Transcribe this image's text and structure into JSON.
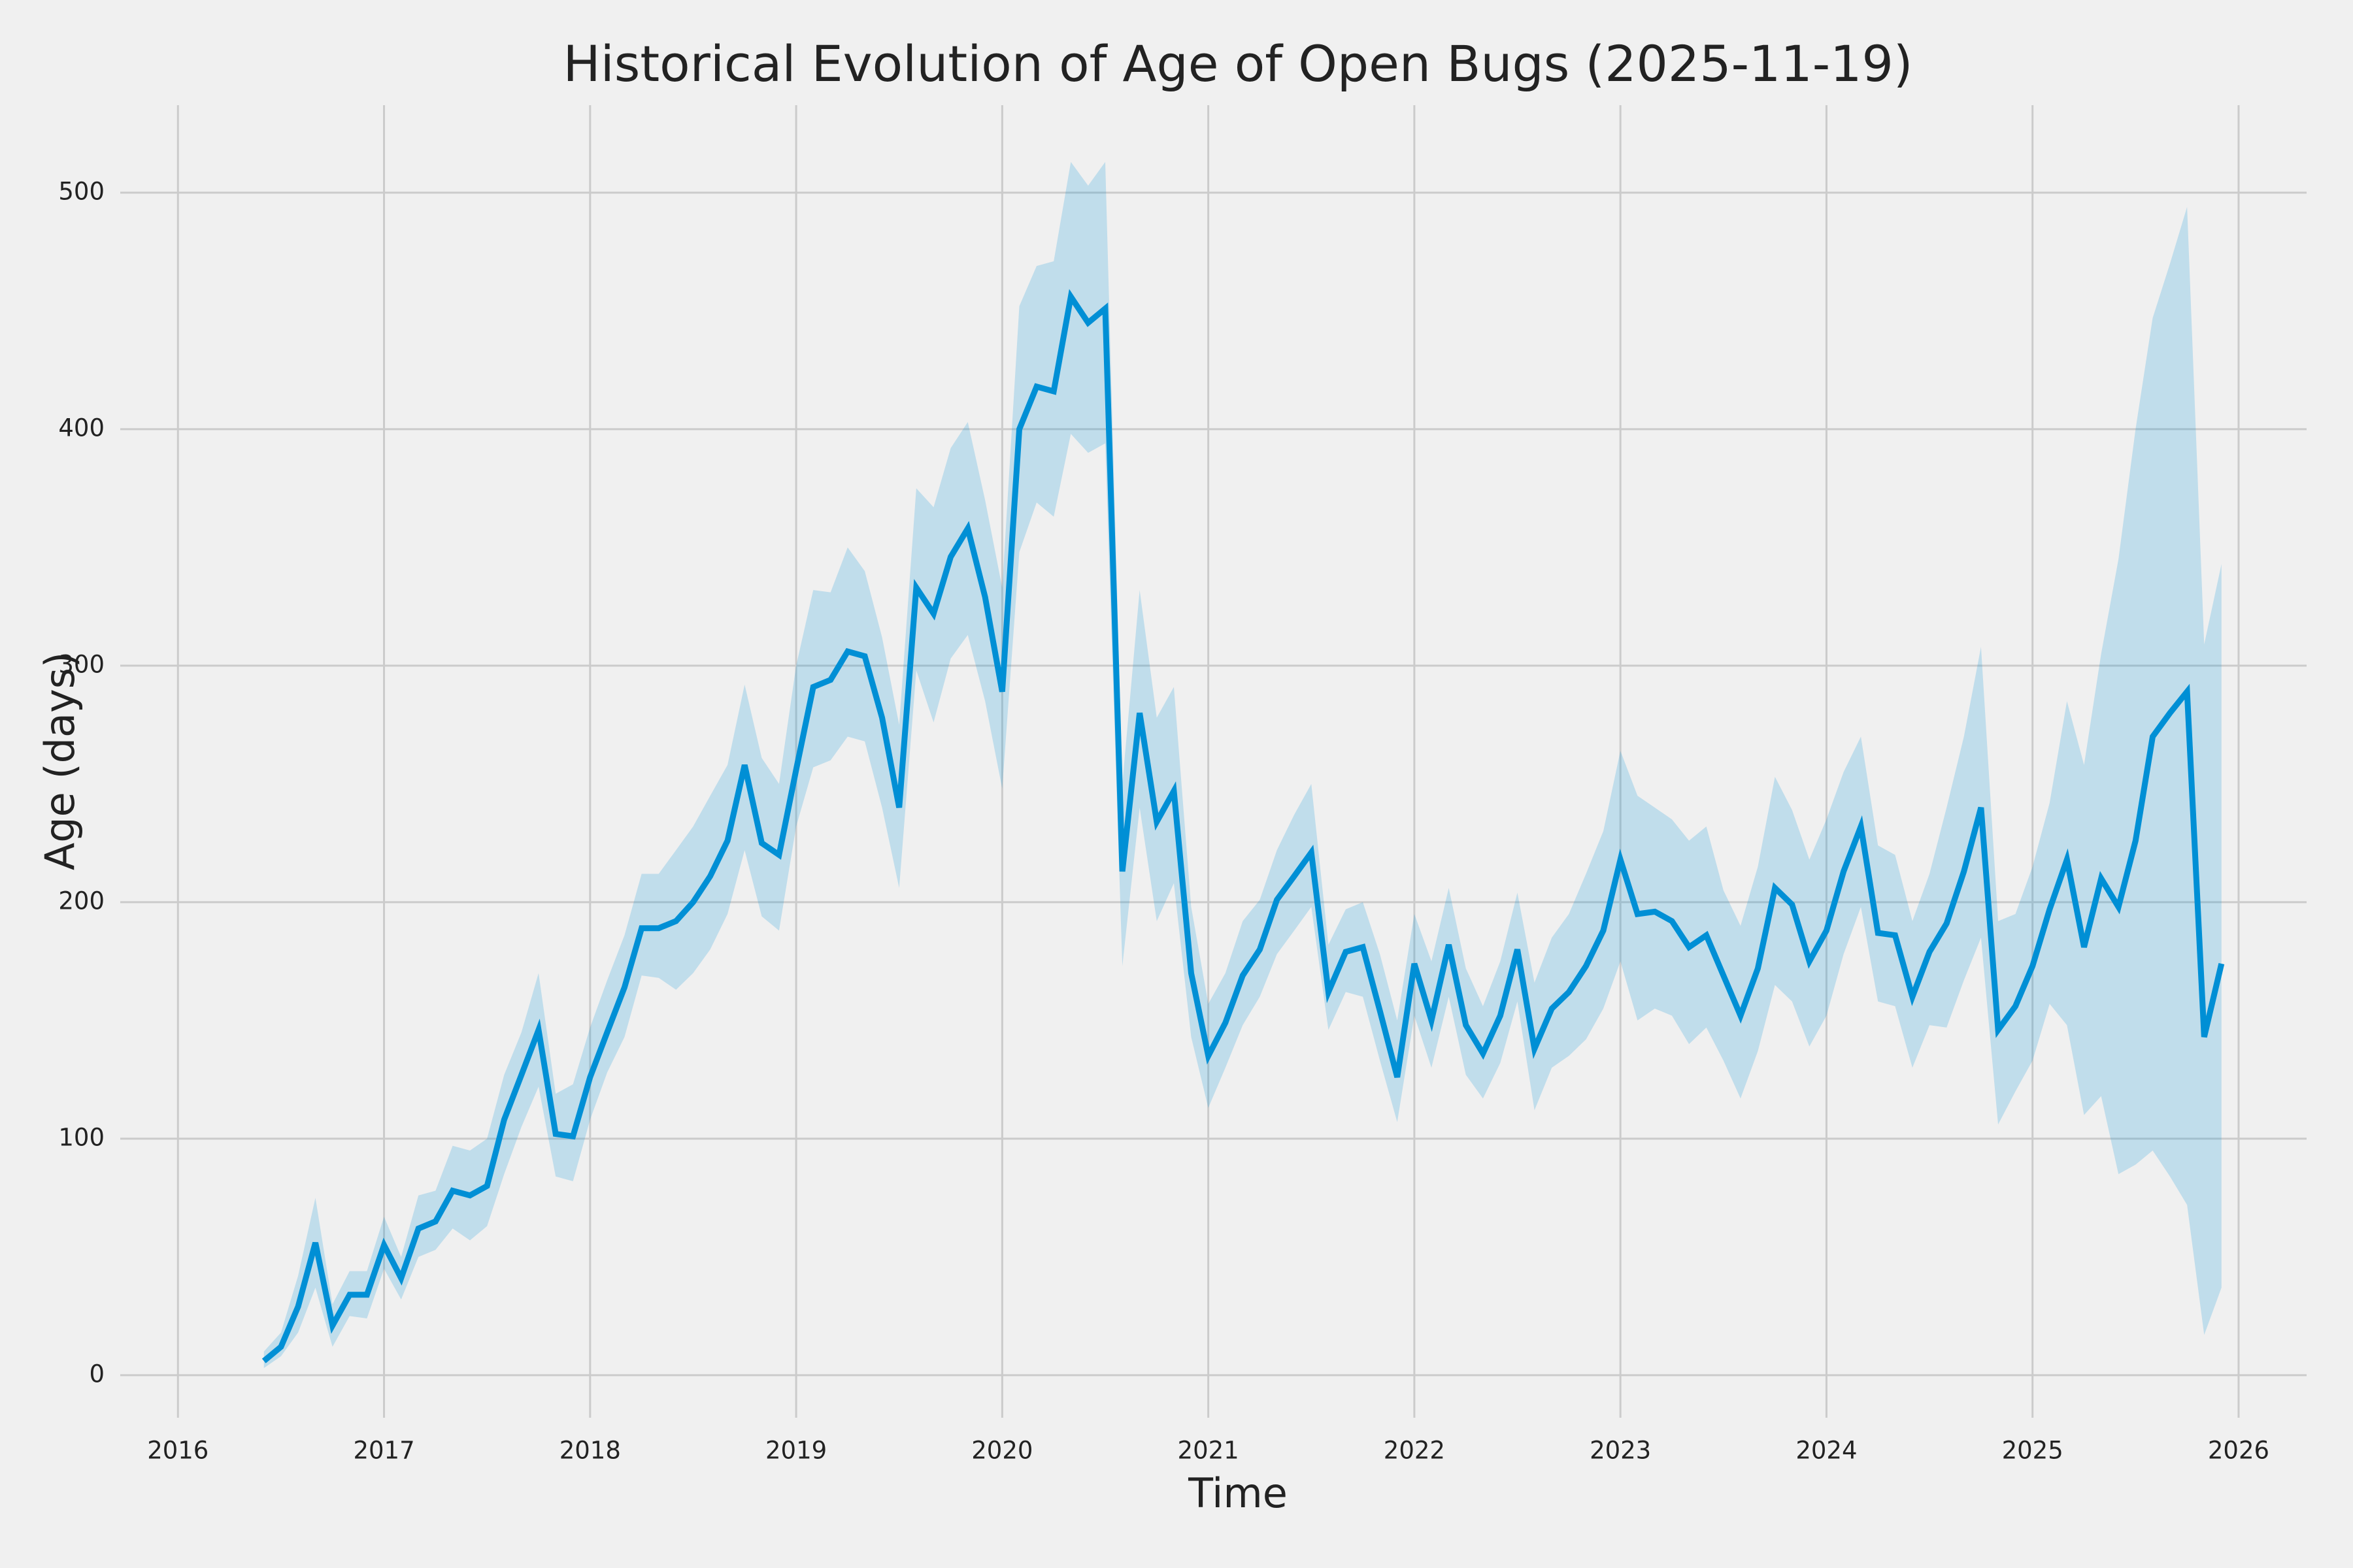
{
  "chart_data": {
    "type": "line",
    "title": "Historical Evolution of Age of Open Bugs (2025-11-19)",
    "xlabel": "Time",
    "ylabel": "Age (days)",
    "color": "#008fd5",
    "band_color": "#008fd5",
    "band_opacity": 0.2,
    "grid": true,
    "xlim": [
      2015.72,
      2026.33
    ],
    "ylim": [
      -18,
      537
    ],
    "xticks": [
      2016,
      2017,
      2018,
      2019,
      2020,
      2021,
      2022,
      2023,
      2024,
      2025,
      2026
    ],
    "yticks": [
      0,
      100,
      200,
      300,
      400,
      500
    ],
    "x": [
      2016.417,
      2016.5,
      2016.583,
      2016.667,
      2016.75,
      2016.833,
      2016.917,
      2017.0,
      2017.083,
      2017.167,
      2017.25,
      2017.333,
      2017.417,
      2017.5,
      2017.583,
      2017.667,
      2017.75,
      2017.833,
      2017.917,
      2018.0,
      2018.083,
      2018.167,
      2018.25,
      2018.333,
      2018.417,
      2018.5,
      2018.583,
      2018.667,
      2018.75,
      2018.833,
      2018.917,
      2019.0,
      2019.083,
      2019.167,
      2019.25,
      2019.333,
      2019.417,
      2019.5,
      2019.583,
      2019.667,
      2019.75,
      2019.833,
      2019.917,
      2020.0,
      2020.083,
      2020.167,
      2020.25,
      2020.333,
      2020.417,
      2020.5,
      2020.583,
      2020.667,
      2020.75,
      2020.833,
      2020.917,
      2021.0,
      2021.083,
      2021.167,
      2021.25,
      2021.333,
      2021.417,
      2021.5,
      2021.583,
      2021.667,
      2021.75,
      2021.833,
      2021.917,
      2022.0,
      2022.083,
      2022.167,
      2022.25,
      2022.333,
      2022.417,
      2022.5,
      2022.583,
      2022.667,
      2022.75,
      2022.833,
      2022.917,
      2023.0,
      2023.083,
      2023.167,
      2023.25,
      2023.333,
      2023.417,
      2023.5,
      2023.583,
      2023.667,
      2023.75,
      2023.833,
      2023.917,
      2024.0,
      2024.083,
      2024.167,
      2024.25,
      2024.333,
      2024.417,
      2024.5,
      2024.583,
      2024.667,
      2024.75,
      2024.833,
      2024.917,
      2025.0,
      2025.083,
      2025.167,
      2025.25,
      2025.333,
      2025.417,
      2025.5,
      2025.583,
      2025.667,
      2025.75,
      2025.833,
      2025.917
    ],
    "values": [
      6,
      12,
      29,
      56,
      21,
      34,
      34,
      55,
      41,
      62,
      65,
      78,
      76,
      80,
      108,
      127,
      146,
      102,
      101,
      126,
      145,
      164,
      189,
      189,
      192,
      200,
      211,
      226,
      258,
      225,
      220,
      256,
      291,
      294,
      306,
      304,
      278,
      240,
      333,
      322,
      346,
      358,
      329,
      289,
      400,
      418,
      416,
      456,
      445,
      451,
      213,
      280,
      234,
      247,
      170,
      135,
      149,
      169,
      180,
      201,
      211,
      221,
      162,
      179,
      181,
      154,
      126,
      174,
      150,
      182,
      148,
      136,
      152,
      180,
      138,
      155,
      162,
      173,
      188,
      218,
      195,
      196,
      192,
      181,
      186,
      169,
      152,
      172,
      206,
      199,
      175,
      188,
      213,
      232,
      187,
      186,
      160,
      179,
      191,
      213,
      240,
      146,
      156,
      173,
      197,
      218,
      181,
      210,
      198,
      226,
      270,
      280,
      289,
      143,
      174
    ],
    "lower": [
      3,
      8,
      18,
      37,
      12,
      25,
      24,
      45,
      32,
      50,
      53,
      62,
      57,
      63,
      85,
      105,
      122,
      84,
      82,
      108,
      128,
      143,
      169,
      168,
      163,
      170,
      180,
      195,
      222,
      194,
      188,
      232,
      257,
      260,
      270,
      268,
      240,
      206,
      298,
      276,
      303,
      313,
      285,
      248,
      348,
      369,
      363,
      398,
      390,
      394,
      173,
      240,
      192,
      208,
      143,
      113,
      130,
      148,
      160,
      178,
      188,
      198,
      146,
      162,
      160,
      133,
      107,
      152,
      130,
      160,
      127,
      117,
      132,
      158,
      112,
      130,
      135,
      142,
      155,
      175,
      150,
      155,
      152,
      140,
      147,
      133,
      117,
      137,
      165,
      158,
      139,
      152,
      178,
      198,
      158,
      156,
      130,
      148,
      147,
      167,
      185,
      106,
      120,
      133,
      157,
      148,
      110,
      118,
      85,
      89,
      95,
      84,
      72,
      17,
      37
    ],
    "upper": [
      10,
      18,
      42,
      75,
      30,
      44,
      44,
      67,
      50,
      76,
      78,
      97,
      95,
      100,
      127,
      145,
      170,
      119,
      123,
      147,
      167,
      186,
      212,
      212,
      222,
      232,
      245,
      258,
      292,
      261,
      250,
      300,
      332,
      331,
      350,
      340,
      312,
      275,
      375,
      367,
      392,
      403,
      370,
      333,
      452,
      469,
      471,
      513,
      503,
      513,
      250,
      332,
      278,
      291,
      198,
      157,
      170,
      192,
      201,
      222,
      237,
      250,
      182,
      197,
      200,
      178,
      150,
      195,
      175,
      206,
      172,
      156,
      175,
      204,
      166,
      185,
      195,
      212,
      230,
      264,
      245,
      240,
      235,
      226,
      232,
      205,
      190,
      215,
      253,
      239,
      218,
      235,
      255,
      270,
      224,
      220,
      192,
      212,
      240,
      270,
      308,
      192,
      195,
      215,
      242,
      285,
      258,
      305,
      345,
      400,
      447,
      470,
      494,
      309,
      343
    ]
  }
}
